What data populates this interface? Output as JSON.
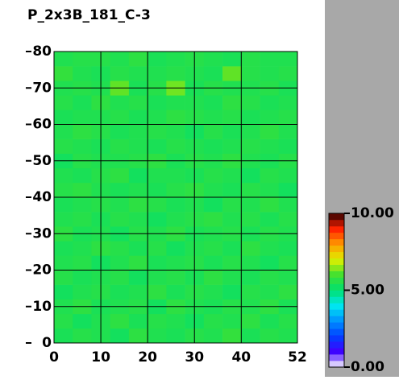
{
  "chart_data": {
    "type": "heatmap",
    "title": "P_2x3B_181_C-3",
    "xlim": [
      0,
      52
    ],
    "ylim": [
      0,
      80
    ],
    "xticks": [
      0,
      10,
      20,
      30,
      40,
      52
    ],
    "yticks": [
      0,
      10,
      20,
      30,
      40,
      50,
      60,
      70,
      80
    ],
    "grid": true,
    "colormap": [
      "#ffffff",
      "#4000ff",
      "#0040ff",
      "#0090ff",
      "#00e8f0",
      "#00e070",
      "#40e030",
      "#e0f000",
      "#ff9800",
      "#ff2000",
      "#300000"
    ],
    "colorbar": {
      "lim": [
        0,
        10
      ],
      "ticks": [
        {
          "value": 0,
          "label": "0.00"
        },
        {
          "value": 5,
          "label": "5.00"
        },
        {
          "value": 10,
          "label": "10.00"
        }
      ]
    },
    "z": [
      [
        5.4,
        5.6,
        5.5,
        5.3,
        5.7,
        5.5,
        5.4,
        5.6,
        5.5,
        5.8,
        5.4,
        5.6,
        5.5
      ],
      [
        5.6,
        5.3,
        5.5,
        5.7,
        5.4,
        5.6,
        5.5,
        5.3,
        5.6,
        5.5,
        5.7,
        5.4,
        5.6
      ],
      [
        5.5,
        5.7,
        5.4,
        5.5,
        5.6,
        5.3,
        5.7,
        5.5,
        5.4,
        5.6,
        5.5,
        5.7,
        5.4
      ],
      [
        5.3,
        5.5,
        5.6,
        5.4,
        5.5,
        5.7,
        5.4,
        5.6,
        5.5,
        5.3,
        5.6,
        5.5,
        5.7
      ],
      [
        5.6,
        5.4,
        5.5,
        5.6,
        5.3,
        5.5,
        5.6,
        5.4,
        5.7,
        5.5,
        5.4,
        5.6,
        5.5
      ],
      [
        5.5,
        5.6,
        5.3,
        5.5,
        5.7,
        5.4,
        5.5,
        5.6,
        5.4,
        5.6,
        5.5,
        5.3,
        5.6
      ],
      [
        5.4,
        5.5,
        5.7,
        5.6,
        5.4,
        5.6,
        5.3,
        5.5,
        5.6,
        5.4,
        5.7,
        5.5,
        5.4
      ],
      [
        5.7,
        5.4,
        5.5,
        5.3,
        5.6,
        5.5,
        5.7,
        5.4,
        5.5,
        5.6,
        5.4,
        5.6,
        5.5
      ],
      [
        5.5,
        5.6,
        5.4,
        5.6,
        5.5,
        5.3,
        5.5,
        5.6,
        5.7,
        5.5,
        5.6,
        5.4,
        5.6
      ],
      [
        5.4,
        5.5,
        5.6,
        5.5,
        5.7,
        5.6,
        5.4,
        5.5,
        5.3,
        5.6,
        5.5,
        5.7,
        5.5
      ],
      [
        5.6,
        5.7,
        5.5,
        5.4,
        5.5,
        5.4,
        5.6,
        5.7,
        5.5,
        5.4,
        5.6,
        5.5,
        5.3
      ],
      [
        5.5,
        5.4,
        5.6,
        5.7,
        5.3,
        5.5,
        5.5,
        5.4,
        5.6,
        5.5,
        5.3,
        5.6,
        5.5
      ],
      [
        5.3,
        5.6,
        5.5,
        5.5,
        5.6,
        5.7,
        5.4,
        5.6,
        5.5,
        5.7,
        5.5,
        5.4,
        5.6
      ],
      [
        5.6,
        5.5,
        5.4,
        5.6,
        5.5,
        5.4,
        5.6,
        5.5,
        5.4,
        5.5,
        5.6,
        5.5,
        5.4
      ],
      [
        5.5,
        5.7,
        5.6,
        5.4,
        5.5,
        5.6,
        5.5,
        5.3,
        5.6,
        5.4,
        5.5,
        5.7,
        5.5
      ],
      [
        5.4,
        5.5,
        5.5,
        5.6,
        5.4,
        5.5,
        5.7,
        5.6,
        5.5,
        5.6,
        5.4,
        5.5,
        5.6
      ],
      [
        5.6,
        5.4,
        5.7,
        5.5,
        5.6,
        5.4,
        5.5,
        5.5,
        5.4,
        5.7,
        5.6,
        5.4,
        5.5
      ],
      [
        5.5,
        5.6,
        5.5,
        6.2,
        5.4,
        5.6,
        6.3,
        5.4,
        5.6,
        5.5,
        5.5,
        5.6,
        5.4
      ],
      [
        5.8,
        5.5,
        5.4,
        5.6,
        5.5,
        5.5,
        5.6,
        5.5,
        5.4,
        6.2,
        5.6,
        5.5,
        5.6
      ],
      [
        5.5,
        5.6,
        5.6,
        5.5,
        5.7,
        5.4,
        5.5,
        5.6,
        5.5,
        5.4,
        5.6,
        5.5,
        5.5
      ]
    ]
  }
}
